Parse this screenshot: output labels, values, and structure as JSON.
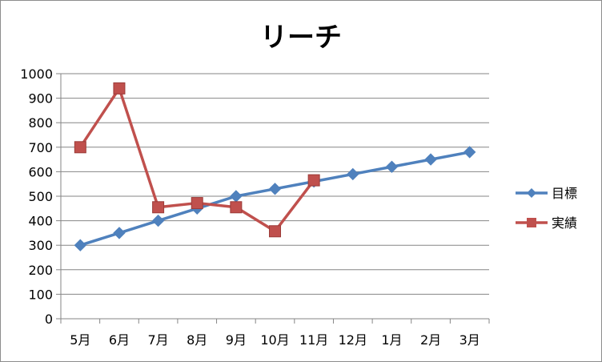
{
  "chart_data": {
    "type": "line",
    "title": "リーチ",
    "xlabel": "",
    "ylabel": "",
    "categories": [
      "5月",
      "6月",
      "7月",
      "8月",
      "9月",
      "10月",
      "11月",
      "12月",
      "1月",
      "2月",
      "3月"
    ],
    "ylim": [
      0,
      1000
    ],
    "yticks": [
      0,
      100,
      200,
      300,
      400,
      500,
      600,
      700,
      800,
      900,
      1000
    ],
    "grid": true,
    "legend_position": "right",
    "series": [
      {
        "name": "目標",
        "color": "#4f81bd",
        "marker": "diamond",
        "values": [
          300,
          350,
          400,
          450,
          500,
          530,
          560,
          590,
          620,
          650,
          680
        ]
      },
      {
        "name": "実績",
        "color": "#c0504d",
        "marker": "square",
        "values": [
          700,
          940,
          455,
          472,
          455,
          357,
          565,
          null,
          null,
          null,
          null
        ]
      }
    ]
  }
}
